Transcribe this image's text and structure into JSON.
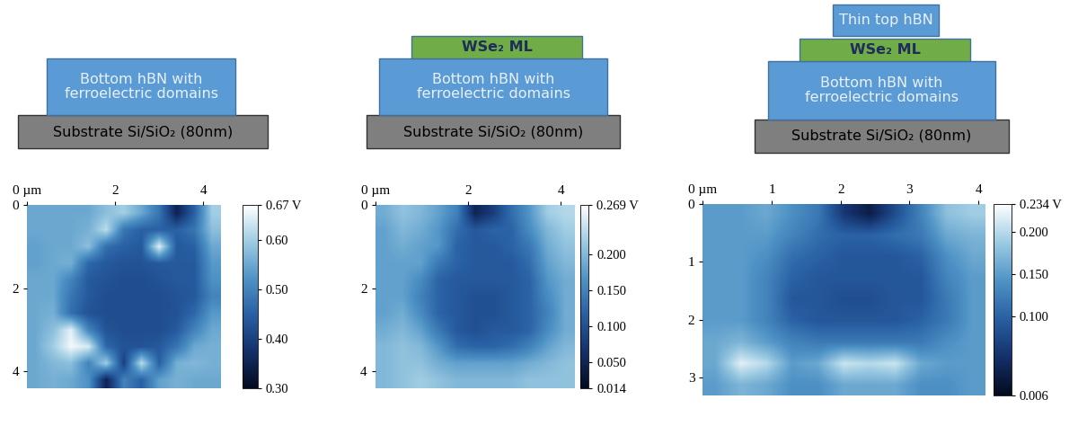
{
  "chart_data": [
    {
      "type": "heatmap",
      "xlim": [
        0,
        4.4
      ],
      "ylim": [
        0,
        4.4
      ],
      "xticks": [
        {
          "value": 0,
          "label": "0 µm"
        },
        2,
        4
      ],
      "yticks": [
        0,
        2,
        4
      ],
      "cells": [
        [
          0.55,
          0.55,
          0.55,
          0.55,
          0.58,
          0.6,
          0.55,
          0.48,
          0.35,
          0.45,
          0.6
        ],
        [
          0.55,
          0.55,
          0.55,
          0.56,
          0.62,
          0.48,
          0.45,
          0.45,
          0.45,
          0.48,
          0.58
        ],
        [
          0.54,
          0.55,
          0.55,
          0.58,
          0.47,
          0.45,
          0.44,
          0.65,
          0.44,
          0.45,
          0.55
        ],
        [
          0.54,
          0.55,
          0.56,
          0.46,
          0.44,
          0.43,
          0.43,
          0.44,
          0.44,
          0.44,
          0.53
        ],
        [
          0.55,
          0.55,
          0.5,
          0.44,
          0.43,
          0.42,
          0.42,
          0.43,
          0.44,
          0.44,
          0.52
        ],
        [
          0.55,
          0.55,
          0.48,
          0.44,
          0.42,
          0.42,
          0.42,
          0.42,
          0.43,
          0.44,
          0.5
        ],
        [
          0.55,
          0.56,
          0.47,
          0.43,
          0.42,
          0.42,
          0.42,
          0.42,
          0.43,
          0.46,
          0.53
        ],
        [
          0.55,
          0.58,
          0.65,
          0.5,
          0.43,
          0.42,
          0.42,
          0.42,
          0.44,
          0.5,
          0.55
        ],
        [
          0.55,
          0.6,
          0.66,
          0.64,
          0.46,
          0.43,
          0.43,
          0.44,
          0.48,
          0.55,
          0.56
        ],
        [
          0.55,
          0.57,
          0.58,
          0.5,
          0.6,
          0.4,
          0.62,
          0.45,
          0.56,
          0.57,
          0.56
        ],
        [
          0.55,
          0.56,
          0.55,
          0.52,
          0.35,
          0.5,
          0.45,
          0.54,
          0.56,
          0.55,
          0.55
        ]
      ],
      "colorbar_range": [
        0.3,
        0.67
      ],
      "colorbar_ticks": [
        {
          "value": 0.67,
          "label": "0.67 V"
        },
        {
          "value": 0.6,
          "label": "0.60"
        },
        {
          "value": 0.5,
          "label": "0.50"
        },
        {
          "value": 0.4,
          "label": "0.40"
        },
        {
          "value": 0.3,
          "label": "0.30"
        }
      ]
    },
    {
      "type": "heatmap",
      "xlim": [
        0,
        4.3
      ],
      "ylim": [
        0,
        4.4
      ],
      "xticks": [
        {
          "value": 0,
          "label": "0 µm"
        },
        2,
        4
      ],
      "yticks": [
        0,
        2,
        4
      ],
      "cells": [
        [
          0.19,
          0.21,
          0.2,
          0.18,
          0.15,
          0.05,
          0.08,
          0.13,
          0.17,
          0.22,
          0.23
        ],
        [
          0.18,
          0.2,
          0.19,
          0.17,
          0.13,
          0.11,
          0.12,
          0.12,
          0.16,
          0.2,
          0.22
        ],
        [
          0.18,
          0.19,
          0.18,
          0.17,
          0.12,
          0.11,
          0.11,
          0.12,
          0.14,
          0.19,
          0.21
        ],
        [
          0.18,
          0.18,
          0.18,
          0.14,
          0.12,
          0.11,
          0.11,
          0.11,
          0.13,
          0.18,
          0.2
        ],
        [
          0.18,
          0.18,
          0.16,
          0.12,
          0.11,
          0.11,
          0.11,
          0.11,
          0.12,
          0.17,
          0.19
        ],
        [
          0.18,
          0.18,
          0.15,
          0.12,
          0.11,
          0.1,
          0.1,
          0.11,
          0.12,
          0.16,
          0.19
        ],
        [
          0.18,
          0.19,
          0.16,
          0.12,
          0.11,
          0.1,
          0.1,
          0.11,
          0.12,
          0.15,
          0.19
        ],
        [
          0.19,
          0.2,
          0.18,
          0.14,
          0.11,
          0.1,
          0.11,
          0.11,
          0.12,
          0.16,
          0.19
        ],
        [
          0.2,
          0.21,
          0.2,
          0.17,
          0.13,
          0.12,
          0.12,
          0.13,
          0.15,
          0.18,
          0.2
        ],
        [
          0.2,
          0.21,
          0.21,
          0.19,
          0.18,
          0.18,
          0.18,
          0.18,
          0.19,
          0.2,
          0.21
        ],
        [
          0.2,
          0.21,
          0.22,
          0.21,
          0.2,
          0.2,
          0.2,
          0.2,
          0.21,
          0.21,
          0.21
        ]
      ],
      "colorbar_range": [
        0.014,
        0.269
      ],
      "colorbar_ticks": [
        {
          "value": 0.269,
          "label": "0.269 V"
        },
        {
          "value": 0.2,
          "label": "0.200"
        },
        {
          "value": 0.15,
          "label": "0.150"
        },
        {
          "value": 0.1,
          "label": "0.100"
        },
        {
          "value": 0.05,
          "label": "0.050"
        },
        {
          "value": 0.014,
          "label": "0.014"
        }
      ]
    },
    {
      "type": "heatmap",
      "xlim": [
        0,
        4.1
      ],
      "ylim": [
        0,
        3.3
      ],
      "xticks": [
        {
          "value": 0,
          "label": "0 µm"
        },
        1,
        2,
        3,
        4
      ],
      "yticks": [
        0,
        1,
        2,
        3
      ],
      "cells": [
        [
          0.15,
          0.15,
          0.16,
          0.14,
          0.12,
          0.06,
          0.03,
          0.08,
          0.13,
          0.18,
          0.19
        ],
        [
          0.15,
          0.15,
          0.15,
          0.13,
          0.11,
          0.1,
          0.1,
          0.11,
          0.12,
          0.16,
          0.17
        ],
        [
          0.15,
          0.15,
          0.14,
          0.11,
          0.1,
          0.09,
          0.09,
          0.09,
          0.1,
          0.14,
          0.16
        ],
        [
          0.15,
          0.15,
          0.13,
          0.1,
          0.09,
          0.09,
          0.09,
          0.09,
          0.09,
          0.13,
          0.15
        ],
        [
          0.15,
          0.15,
          0.13,
          0.09,
          0.09,
          0.08,
          0.08,
          0.09,
          0.09,
          0.12,
          0.15
        ],
        [
          0.15,
          0.15,
          0.13,
          0.1,
          0.09,
          0.09,
          0.09,
          0.09,
          0.1,
          0.12,
          0.15
        ],
        [
          0.16,
          0.17,
          0.15,
          0.13,
          0.12,
          0.12,
          0.12,
          0.12,
          0.12,
          0.14,
          0.15
        ],
        [
          0.16,
          0.22,
          0.2,
          0.15,
          0.16,
          0.21,
          0.2,
          0.21,
          0.16,
          0.15,
          0.15
        ],
        [
          0.15,
          0.17,
          0.16,
          0.14,
          0.14,
          0.16,
          0.16,
          0.16,
          0.14,
          0.14,
          0.15
        ]
      ],
      "colorbar_range": [
        0.006,
        0.234
      ],
      "colorbar_ticks": [
        {
          "value": 0.234,
          "label": "0.234 V"
        },
        {
          "value": 0.2,
          "label": "0.200"
        },
        {
          "value": 0.15,
          "label": "0.150"
        },
        {
          "value": 0.1,
          "label": "0.100"
        },
        {
          "value": 0.006,
          "label": "0.006"
        }
      ]
    }
  ],
  "diagrams": [
    {
      "layers": [
        {
          "label": "Substrate Si/SiO₂ (80nm)",
          "color": "#7f7f7f"
        },
        {
          "label": "Bottom hBN with\nferroelectric domains",
          "color": "#5b9bd5"
        }
      ]
    },
    {
      "layers": [
        {
          "label": "Substrate Si/SiO₂ (80nm)",
          "color": "#7f7f7f"
        },
        {
          "label": "Bottom hBN with\nferroelectric domains",
          "color": "#5b9bd5"
        },
        {
          "label": "WSe₂ ML",
          "color": "#70ad47"
        }
      ]
    },
    {
      "layers": [
        {
          "label": "Substrate Si/SiO₂ (80nm)",
          "color": "#7f7f7f"
        },
        {
          "label": "Bottom hBN with\nferroelectric domains",
          "color": "#5b9bd5"
        },
        {
          "label": "WSe₂ ML",
          "color": "#70ad47"
        },
        {
          "label": "Thin top hBN",
          "color": "#5b9bd5"
        }
      ]
    }
  ]
}
